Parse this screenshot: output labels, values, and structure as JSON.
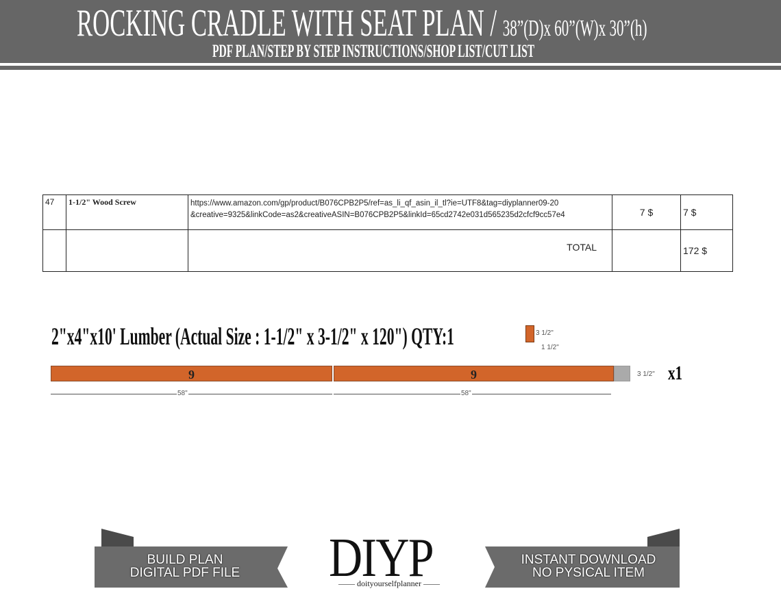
{
  "header": {
    "title": "ROCKING CRADLE WITH SEAT PLAN /",
    "dimensions": "38”(D)x 60”(W)x 30”(h)",
    "subtitle": "PDF PLAN/STEP BY STEP INSTRUCTIONS/SHOP LIST/CUT LIST"
  },
  "shop_list": {
    "rows": [
      {
        "no": "47",
        "name": "1-1/2\" Wood Screw",
        "url": "https://www.amazon.com/gp/product/B076CPB2P5/ref=as_li_qf_asin_il_tl?ie=UTF8&tag=diyplanner09-20",
        "url2": "&creative=9325&linkCode=as2&creativeASIN=B076CPB2P5&linkId=65cd2742e031d565235d2cfcf9cc57e4",
        "price": "7 $",
        "total": "7 $"
      }
    ],
    "total_label": "TOTAL",
    "total_value": "172 $"
  },
  "cut_list": {
    "title": "2\"x4\"x10' Lumber (Actual Size : 1-1/2\" x 3-1/2\" x 120\") QTY:1",
    "cross_section": {
      "height": "3 1/2\"",
      "width": "1 1/2\""
    },
    "pieces": [
      {
        "label": "9",
        "length": "58\""
      },
      {
        "label": "9",
        "length": "58\""
      }
    ],
    "board_height": "3 1/2\"",
    "multiplier": "x1",
    "colors": {
      "piece": "#d2652a",
      "waste": "#aaaaaa"
    }
  },
  "footer": {
    "left_banner": [
      "BUILD PLAN",
      "DIGITAL PDF FILE"
    ],
    "logo": "DIYP",
    "tagline": "—— doityourselfplanner ——",
    "right_banner": [
      "INSTANT DOWNLOAD",
      "NO PYSICAL ITEM"
    ]
  }
}
